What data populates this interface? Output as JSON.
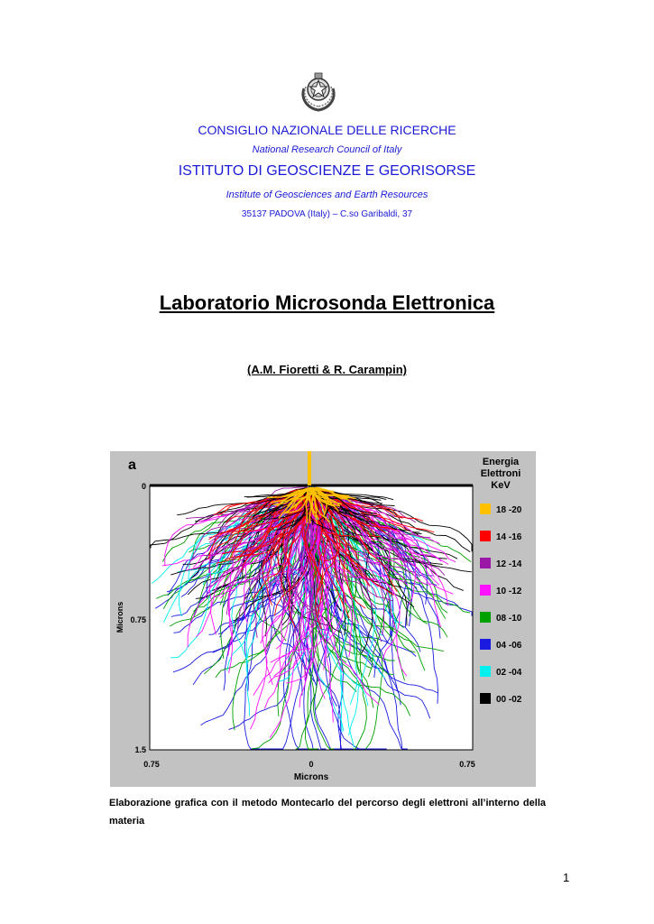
{
  "header": {
    "emblem_icon": "italian-republic-emblem-icon",
    "org": "CONSIGLIO NAZIONALE DELLE RICERCHE",
    "org_en": "National Research Council of Italy",
    "institute": "ISTITUTO DI GEOSCIENZE E GEORISORSE",
    "institute_en": "Institute of Geosciences and Earth Resources",
    "address": "35137  PADOVA (Italy) – C.so Garibaldi, 37",
    "text_color": "#1a1ad6"
  },
  "title": "Laboratorio Microsonda Elettronica",
  "authors": "(A.M. Fioretti & R. Carampin)",
  "figure": {
    "panel_label": "a",
    "legend_title": [
      "Energia",
      "Elettroni",
      "KeV"
    ],
    "legend": [
      {
        "label": "18 -20",
        "color": "#ffc000"
      },
      {
        "label": "14 -16",
        "color": "#ff0000"
      },
      {
        "label": "12 -14",
        "color": "#9b18a6"
      },
      {
        "label": "10 -12",
        "color": "#ff10ff"
      },
      {
        "label": "08 -10",
        "color": "#00a000"
      },
      {
        "label": "04 -06",
        "color": "#1a1ae0"
      },
      {
        "label": "02 -04",
        "color": "#00f0f0"
      },
      {
        "label": "00 -02",
        "color": "#000000"
      }
    ],
    "y_axis_title": "Microns",
    "y_ticks": [
      "0",
      "0.75",
      "1.5"
    ],
    "x_axis_title": "Microns",
    "x_ticks": [
      "0.75",
      "0",
      "0.75"
    ]
  },
  "caption": "Elaborazione grafica con il metodo Montecarlo del percorso degli elettroni all’interno della materia",
  "page_number": "1"
}
